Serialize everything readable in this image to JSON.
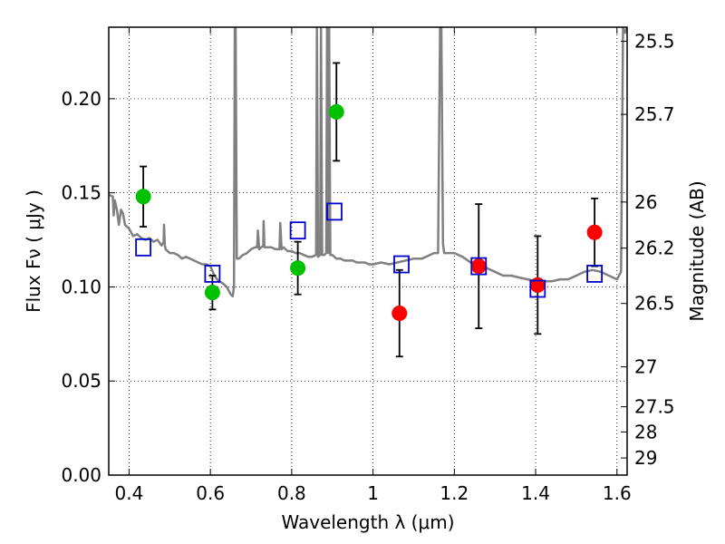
{
  "chart_data": {
    "type": "scatter",
    "xlabel": "Wavelength  λ (μm)",
    "ylabel": "Flux  Fν  ( μJy )",
    "y2label": "Magnitude (AB)",
    "xlim": [
      0.35,
      1.625
    ],
    "ylim": [
      0.0,
      0.238
    ],
    "grid": true,
    "x_ticks": [
      {
        "value": 0.4,
        "label": "0.4"
      },
      {
        "value": 0.6,
        "label": "0.6"
      },
      {
        "value": 0.8,
        "label": "0.8"
      },
      {
        "value": 1.0,
        "label": "1"
      },
      {
        "value": 1.2,
        "label": "1.2"
      },
      {
        "value": 1.4,
        "label": "1.4"
      },
      {
        "value": 1.6,
        "label": "1.6"
      }
    ],
    "y_ticks": [
      {
        "value": 0.0,
        "label": "0.00"
      },
      {
        "value": 0.05,
        "label": "0.05"
      },
      {
        "value": 0.1,
        "label": "0.10"
      },
      {
        "value": 0.15,
        "label": "0.15"
      },
      {
        "value": 0.2,
        "label": "0.20"
      }
    ],
    "y2_ticks": [
      {
        "flux": 0.2305,
        "label": "25.5"
      },
      {
        "flux": 0.1917,
        "label": "25.7"
      },
      {
        "flux": 0.1451,
        "label": "26"
      },
      {
        "flux": 0.1206,
        "label": "26.2"
      },
      {
        "flux": 0.0912,
        "label": "26.5"
      },
      {
        "flux": 0.0575,
        "label": "27"
      },
      {
        "flux": 0.0363,
        "label": "27.5"
      },
      {
        "flux": 0.0229,
        "label": "28"
      },
      {
        "flux": 0.0091,
        "label": "29"
      }
    ],
    "template_spectrum": {
      "color": "#808080",
      "x": [
        0.35,
        0.36,
        0.362,
        0.365,
        0.37,
        0.375,
        0.38,
        0.385,
        0.39,
        0.4,
        0.41,
        0.42,
        0.43,
        0.44,
        0.45,
        0.46,
        0.47,
        0.48,
        0.485,
        0.486,
        0.488,
        0.49,
        0.5,
        0.51,
        0.52,
        0.53,
        0.54,
        0.55,
        0.56,
        0.57,
        0.58,
        0.59,
        0.6,
        0.61,
        0.62,
        0.63,
        0.64,
        0.65,
        0.655,
        0.658,
        0.66,
        0.662,
        0.665,
        0.67,
        0.68,
        0.69,
        0.7,
        0.71,
        0.715,
        0.717,
        0.72,
        0.73,
        0.731,
        0.733,
        0.74,
        0.75,
        0.76,
        0.77,
        0.772,
        0.775,
        0.78,
        0.79,
        0.8,
        0.81,
        0.82,
        0.83,
        0.84,
        0.85,
        0.86,
        0.862,
        0.865,
        0.87,
        0.872,
        0.875,
        0.88,
        0.885,
        0.887,
        0.89,
        0.892,
        0.895,
        0.9,
        0.91,
        0.92,
        0.93,
        0.94,
        0.95,
        0.96,
        0.97,
        0.98,
        0.99,
        1.0,
        1.02,
        1.04,
        1.06,
        1.08,
        1.1,
        1.12,
        1.14,
        1.15,
        1.16,
        1.165,
        1.168,
        1.172,
        1.175,
        1.18,
        1.19,
        1.2,
        1.22,
        1.24,
        1.255,
        1.26,
        1.27,
        1.28,
        1.3,
        1.32,
        1.34,
        1.36,
        1.38,
        1.4,
        1.42,
        1.44,
        1.46,
        1.48,
        1.5,
        1.52,
        1.54,
        1.56,
        1.58,
        1.6,
        1.61,
        1.615,
        1.62,
        1.625
      ],
      "y": [
        0.149,
        0.148,
        0.138,
        0.146,
        0.141,
        0.133,
        0.141,
        0.139,
        0.133,
        0.131,
        0.127,
        0.128,
        0.126,
        0.125,
        0.126,
        0.124,
        0.125,
        0.122,
        0.124,
        0.133,
        0.122,
        0.12,
        0.118,
        0.118,
        0.117,
        0.115,
        0.116,
        0.115,
        0.114,
        0.113,
        0.112,
        0.112,
        0.111,
        0.106,
        0.103,
        0.102,
        0.1,
        0.096,
        0.095,
        0.1,
        0.238,
        0.238,
        0.115,
        0.115,
        0.117,
        0.118,
        0.12,
        0.121,
        0.121,
        0.13,
        0.12,
        0.122,
        0.135,
        0.121,
        0.121,
        0.121,
        0.12,
        0.12,
        0.134,
        0.12,
        0.121,
        0.119,
        0.119,
        0.118,
        0.118,
        0.117,
        0.116,
        0.116,
        0.117,
        0.238,
        0.116,
        0.117,
        0.238,
        0.117,
        0.117,
        0.118,
        0.238,
        0.118,
        0.238,
        0.117,
        0.117,
        0.115,
        0.115,
        0.114,
        0.114,
        0.114,
        0.113,
        0.113,
        0.113,
        0.112,
        0.112,
        0.113,
        0.112,
        0.113,
        0.114,
        0.115,
        0.115,
        0.117,
        0.118,
        0.118,
        0.238,
        0.238,
        0.123,
        0.118,
        0.118,
        0.118,
        0.118,
        0.116,
        0.113,
        0.111,
        0.113,
        0.112,
        0.11,
        0.108,
        0.106,
        0.106,
        0.105,
        0.104,
        0.103,
        0.103,
        0.103,
        0.104,
        0.104,
        0.106,
        0.108,
        0.109,
        0.108,
        0.106,
        0.104,
        0.108,
        0.238,
        0.235,
        0.238
      ]
    },
    "series": [
      {
        "marker": "circle",
        "color": "#00c000",
        "x": [
          0.435,
          0.605,
          0.815,
          0.91
        ],
        "y": [
          0.148,
          0.097,
          0.11,
          0.193
        ],
        "yerr": [
          0.016,
          0.009,
          0.014,
          0.026
        ]
      },
      {
        "marker": "circle",
        "color": "#ff0000",
        "x": [
          1.065,
          1.26,
          1.405,
          1.545
        ],
        "y": [
          0.086,
          0.111,
          0.101,
          0.129
        ],
        "yerr": [
          0.023,
          0.033,
          0.026,
          0.018
        ]
      },
      {
        "marker": "square-open",
        "color": "#0000cc",
        "x": [
          0.435,
          0.605,
          0.815,
          0.905,
          1.07,
          1.26,
          1.405,
          1.545
        ],
        "y": [
          0.121,
          0.107,
          0.13,
          0.14,
          0.112,
          0.111,
          0.099,
          0.107
        ]
      }
    ]
  }
}
